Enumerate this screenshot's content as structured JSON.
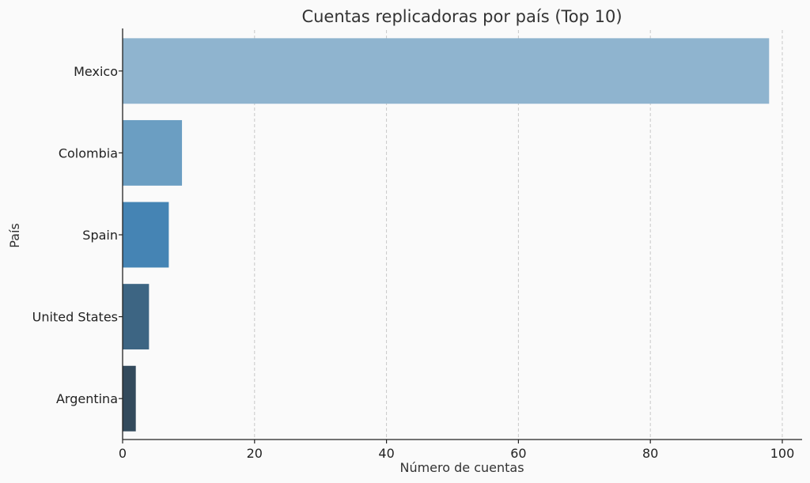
{
  "chart_data": {
    "type": "bar",
    "orientation": "horizontal",
    "title": "Cuentas replicadoras por país (Top 10)",
    "xlabel": "Número de cuentas",
    "ylabel": "País",
    "categories": [
      "Mexico",
      "Colombia",
      "Spain",
      "United States",
      "Argentina"
    ],
    "values": [
      98,
      9,
      7,
      4,
      2
    ],
    "colors": [
      "#8fb4cf",
      "#6b9ec2",
      "#4584b4",
      "#3d6583",
      "#334a5c"
    ],
    "xlim": [
      0,
      103
    ],
    "xticks": [
      0,
      20,
      40,
      60,
      80,
      100
    ],
    "grid": "x-dashed",
    "legend": "none"
  }
}
